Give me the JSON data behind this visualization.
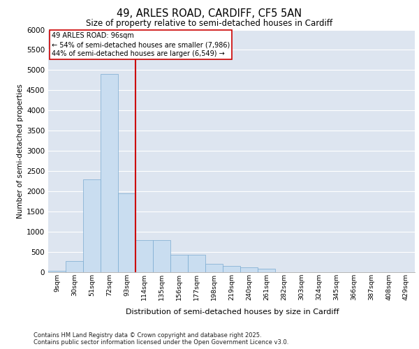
{
  "title1": "49, ARLES ROAD, CARDIFF, CF5 5AN",
  "title2": "Size of property relative to semi-detached houses in Cardiff",
  "xlabel": "Distribution of semi-detached houses by size in Cardiff",
  "ylabel": "Number of semi-detached properties",
  "footnote1": "Contains HM Land Registry data © Crown copyright and database right 2025.",
  "footnote2": "Contains public sector information licensed under the Open Government Licence v3.0.",
  "annotation_title": "49 ARLES ROAD: 96sqm",
  "annotation_line1": "← 54% of semi-detached houses are smaller (7,986)",
  "annotation_line2": "44% of semi-detached houses are larger (6,549) →",
  "bar_categories": [
    "9sqm",
    "30sqm",
    "51sqm",
    "72sqm",
    "93sqm",
    "114sqm",
    "135sqm",
    "156sqm",
    "177sqm",
    "198sqm",
    "219sqm",
    "240sqm",
    "261sqm",
    "282sqm",
    "303sqm",
    "324sqm",
    "345sqm",
    "366sqm",
    "387sqm",
    "408sqm",
    "429sqm"
  ],
  "bar_values": [
    30,
    280,
    2300,
    4900,
    1950,
    800,
    800,
    430,
    430,
    200,
    150,
    120,
    80,
    0,
    0,
    0,
    0,
    0,
    0,
    0,
    0
  ],
  "bar_color": "#c9ddf0",
  "bar_edge_color": "#7aaad0",
  "vline_color": "#cc0000",
  "vline_pos": 4.5,
  "annotation_box_bg": "#ffffff",
  "annotation_box_edge": "#cc0000",
  "ylim_max": 6000,
  "yticks": [
    0,
    500,
    1000,
    1500,
    2000,
    2500,
    3000,
    3500,
    4000,
    4500,
    5000,
    5500,
    6000
  ],
  "plot_bg": "#dde5f0",
  "grid_color": "#ffffff",
  "title1_fontsize": 10.5,
  "title2_fontsize": 8.5
}
